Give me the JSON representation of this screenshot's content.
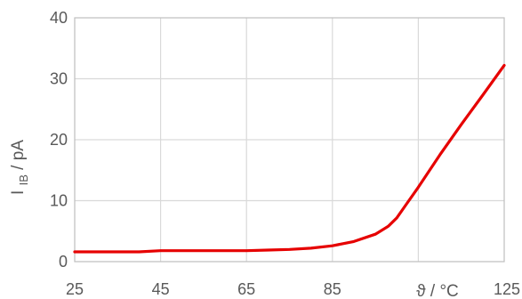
{
  "chart_data": {
    "type": "line",
    "xlabel": "ϑ / °C",
    "ylabel_main": "I",
    "ylabel_sub": "IB",
    "ylabel_rest": " / pA",
    "xlim": [
      25,
      125
    ],
    "ylim": [
      0,
      40
    ],
    "x_ticks": [
      25,
      45,
      65,
      85,
      105,
      125
    ],
    "x_tick_labels": [
      "25",
      "45",
      "65",
      "85",
      "",
      "125"
    ],
    "y_ticks": [
      0,
      10,
      20,
      30,
      40
    ],
    "y_tick_labels": [
      "0",
      "10",
      "20",
      "30",
      "40"
    ],
    "grid": true,
    "legend": "none",
    "series": [
      {
        "color": "#e60000",
        "x": [
          25,
          30,
          35,
          40,
          45,
          50,
          55,
          60,
          65,
          70,
          75,
          80,
          85,
          90,
          95,
          98,
          100,
          102,
          105,
          110,
          115,
          120,
          125
        ],
        "y": [
          1.6,
          1.6,
          1.6,
          1.6,
          1.8,
          1.8,
          1.8,
          1.8,
          1.8,
          1.9,
          2.0,
          2.2,
          2.6,
          3.3,
          4.5,
          5.8,
          7.2,
          9.2,
          12.2,
          17.5,
          22.5,
          27.3,
          32.2
        ]
      }
    ]
  }
}
